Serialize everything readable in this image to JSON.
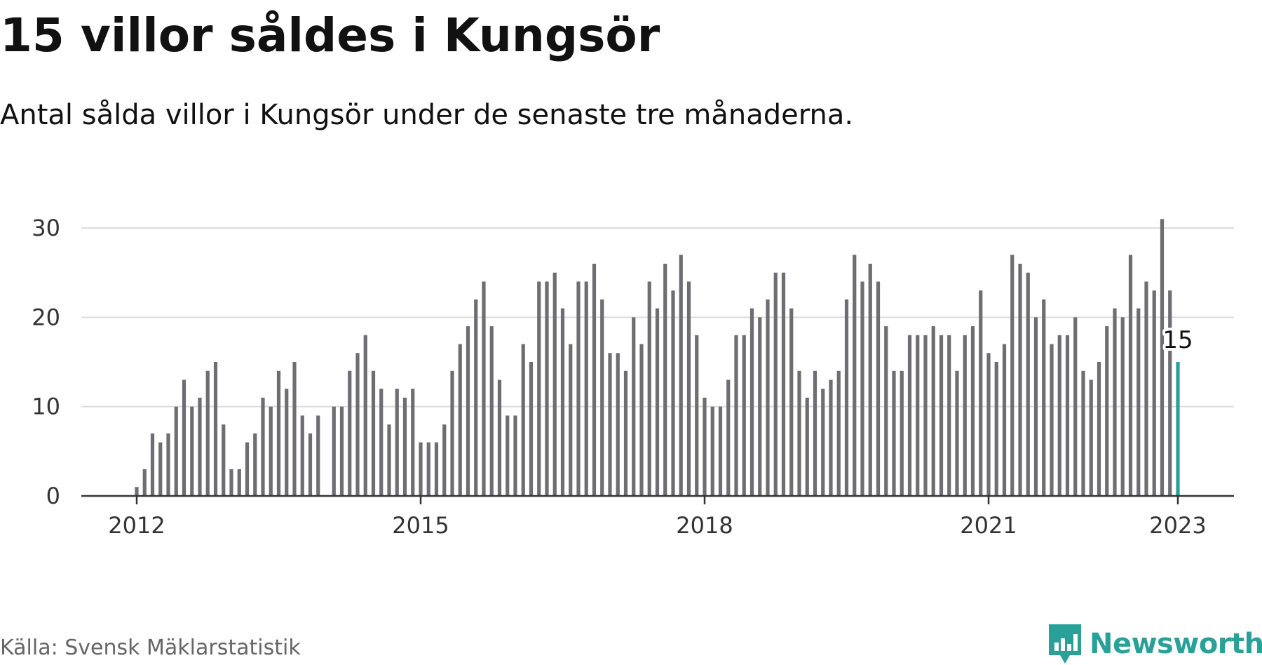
{
  "header": {
    "title": "15 villor såldes i Kungsör",
    "subtitle": "Antal sålda villor i Kungsör under de senaste tre månaderna."
  },
  "footer": {
    "source": "Källa: Svensk Mäklarstatistik",
    "brand": "Newsworthy"
  },
  "colors": {
    "bar": "#6d6d72",
    "highlight": "#2aa198",
    "grid": "#dddddd",
    "axis": "#333333",
    "brand": "#2aa198"
  },
  "chart_data": {
    "type": "bar",
    "x_start": "2012-01",
    "x_ticks": [
      "2012",
      "2015",
      "2018",
      "2021",
      "2023"
    ],
    "y_ticks": [
      0,
      10,
      20,
      30
    ],
    "ylim": [
      0,
      31
    ],
    "grid": true,
    "annotation": "15",
    "values": [
      1,
      3,
      7,
      6,
      7,
      10,
      13,
      10,
      11,
      14,
      15,
      8,
      3,
      3,
      6,
      7,
      11,
      10,
      14,
      12,
      15,
      9,
      7,
      9,
      null,
      10,
      10,
      14,
      16,
      18,
      14,
      12,
      8,
      12,
      11,
      12,
      6,
      6,
      6,
      8,
      14,
      17,
      19,
      22,
      24,
      19,
      13,
      9,
      9,
      17,
      15,
      24,
      24,
      25,
      21,
      17,
      24,
      24,
      26,
      22,
      16,
      16,
      14,
      20,
      17,
      24,
      21,
      26,
      23,
      27,
      24,
      18,
      11,
      10,
      10,
      13,
      18,
      18,
      21,
      20,
      22,
      25,
      25,
      21,
      14,
      11,
      14,
      12,
      13,
      14,
      22,
      27,
      24,
      26,
      24,
      19,
      14,
      14,
      18,
      18,
      18,
      19,
      18,
      18,
      14,
      18,
      19,
      23,
      16,
      15,
      17,
      27,
      26,
      25,
      20,
      22,
      17,
      18,
      18,
      20,
      14,
      13,
      15,
      19,
      21,
      20,
      27,
      21,
      24,
      23,
      31,
      23,
      15
    ]
  }
}
